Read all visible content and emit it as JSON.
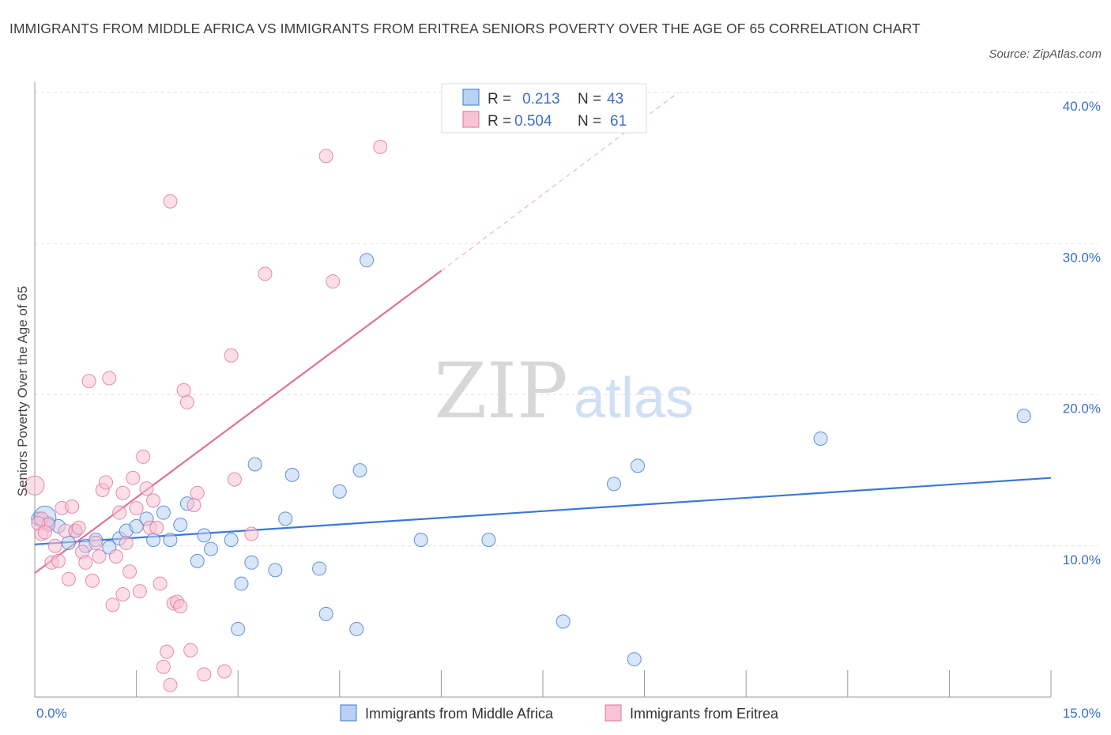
{
  "title": "IMMIGRANTS FROM MIDDLE AFRICA VS IMMIGRANTS FROM ERITREA SENIORS POVERTY OVER THE AGE OF 65 CORRELATION CHART",
  "source": "Source: ZipAtlas.com",
  "watermark": {
    "zip": "ZIP",
    "atlas": "atlas"
  },
  "colors": {
    "blue": "#3b78d8",
    "blue_fill": "#b9d1f3",
    "pink": "#e0709a",
    "pink_fill": "#f7c3d5",
    "axis_text": "#3b6fc4"
  },
  "legend": {
    "r_label": "R =",
    "n_label": "N =",
    "rows": [
      {
        "r": "0.213",
        "n": "43"
      },
      {
        "r": "0.504",
        "n": "61"
      }
    ]
  },
  "chart_data": {
    "type": "scatter",
    "xlabel": "",
    "ylabel": "Seniors Poverty Over the Age of 65",
    "xlim": [
      0,
      15
    ],
    "ylim": [
      0,
      40
    ],
    "x_tick_labels": [
      "0.0%",
      "15.0%"
    ],
    "y_ticks": [
      10,
      20,
      30,
      40
    ],
    "y_tick_labels": [
      "10.0%",
      "20.0%",
      "30.0%",
      "40.0%"
    ],
    "grid": true,
    "legend_position": "top-center",
    "series": [
      {
        "name": "Immigrants from Middle Africa",
        "color": "#3b78d8",
        "trend": {
          "x": [
            0,
            15
          ],
          "y": [
            10.1,
            14.5
          ]
        },
        "points": [
          [
            0.05,
            11.8
          ],
          [
            0.2,
            11.5
          ],
          [
            0.35,
            11.3
          ],
          [
            0.5,
            10.2
          ],
          [
            0.6,
            11.0
          ],
          [
            0.75,
            10.0
          ],
          [
            0.9,
            10.4
          ],
          [
            1.1,
            9.9
          ],
          [
            1.25,
            10.5
          ],
          [
            1.35,
            11.0
          ],
          [
            1.5,
            11.3
          ],
          [
            1.65,
            11.8
          ],
          [
            1.75,
            10.4
          ],
          [
            1.9,
            12.2
          ],
          [
            2.0,
            10.4
          ],
          [
            2.15,
            11.4
          ],
          [
            2.25,
            12.8
          ],
          [
            2.4,
            9.0
          ],
          [
            2.5,
            10.7
          ],
          [
            2.6,
            9.8
          ],
          [
            2.9,
            10.4
          ],
          [
            3.05,
            7.5
          ],
          [
            3.2,
            8.9
          ],
          [
            3.25,
            15.4
          ],
          [
            3.55,
            8.4
          ],
          [
            3.7,
            11.8
          ],
          [
            3.8,
            14.7
          ],
          [
            4.2,
            8.5
          ],
          [
            4.3,
            5.5
          ],
          [
            4.5,
            13.6
          ],
          [
            4.75,
            4.5
          ],
          [
            4.8,
            15.0
          ],
          [
            4.9,
            28.9
          ],
          [
            5.7,
            10.4
          ],
          [
            6.7,
            10.4
          ],
          [
            7.8,
            5.0
          ],
          [
            8.55,
            14.1
          ],
          [
            8.85,
            2.5
          ],
          [
            8.9,
            15.3
          ],
          [
            11.6,
            17.1
          ],
          [
            14.6,
            18.6
          ],
          [
            3.0,
            4.5
          ],
          [
            0.15,
            11.9
          ]
        ]
      },
      {
        "name": "Immigrants from Eritrea",
        "color": "#e0709a",
        "trend": {
          "x": [
            0,
            6.0
          ],
          "y": [
            8.2,
            28.2
          ]
        },
        "trend_extension": {
          "x": [
            6.0,
            9.5
          ],
          "y": [
            28.2,
            40.0
          ]
        },
        "points": [
          [
            0.0,
            14.0
          ],
          [
            0.1,
            11.8
          ],
          [
            0.1,
            10.8
          ],
          [
            0.2,
            11.4
          ],
          [
            0.25,
            8.9
          ],
          [
            0.3,
            10.0
          ],
          [
            0.35,
            9.0
          ],
          [
            0.4,
            12.5
          ],
          [
            0.45,
            11.0
          ],
          [
            0.5,
            7.8
          ],
          [
            0.55,
            12.6
          ],
          [
            0.6,
            11.0
          ],
          [
            0.65,
            11.2
          ],
          [
            0.7,
            9.6
          ],
          [
            0.75,
            8.9
          ],
          [
            0.8,
            20.9
          ],
          [
            0.85,
            7.7
          ],
          [
            0.9,
            10.2
          ],
          [
            0.95,
            9.3
          ],
          [
            1.0,
            13.7
          ],
          [
            1.05,
            14.2
          ],
          [
            1.1,
            21.1
          ],
          [
            1.15,
            6.1
          ],
          [
            1.2,
            9.3
          ],
          [
            1.25,
            12.2
          ],
          [
            1.3,
            13.5
          ],
          [
            1.35,
            10.2
          ],
          [
            1.4,
            8.3
          ],
          [
            1.45,
            14.5
          ],
          [
            1.5,
            12.5
          ],
          [
            1.55,
            7.0
          ],
          [
            1.6,
            15.9
          ],
          [
            1.65,
            13.8
          ],
          [
            1.7,
            11.2
          ],
          [
            1.75,
            13.0
          ],
          [
            1.8,
            11.2
          ],
          [
            1.85,
            7.5
          ],
          [
            1.9,
            2.0
          ],
          [
            1.95,
            3.0
          ],
          [
            2.0,
            0.8
          ],
          [
            2.05,
            6.2
          ],
          [
            2.1,
            6.3
          ],
          [
            2.15,
            6.0
          ],
          [
            2.2,
            20.3
          ],
          [
            2.25,
            19.5
          ],
          [
            2.3,
            3.1
          ],
          [
            2.35,
            12.7
          ],
          [
            2.4,
            13.5
          ],
          [
            2.5,
            1.5
          ],
          [
            2.8,
            1.7
          ],
          [
            2.9,
            22.6
          ],
          [
            2.95,
            14.4
          ],
          [
            3.2,
            10.8
          ],
          [
            3.4,
            28.0
          ],
          [
            4.3,
            35.8
          ],
          [
            4.4,
            27.5
          ],
          [
            5.1,
            36.4
          ],
          [
            2.0,
            32.8
          ],
          [
            0.05,
            11.5
          ],
          [
            1.3,
            6.8
          ],
          [
            0.15,
            10.9
          ]
        ]
      }
    ]
  }
}
